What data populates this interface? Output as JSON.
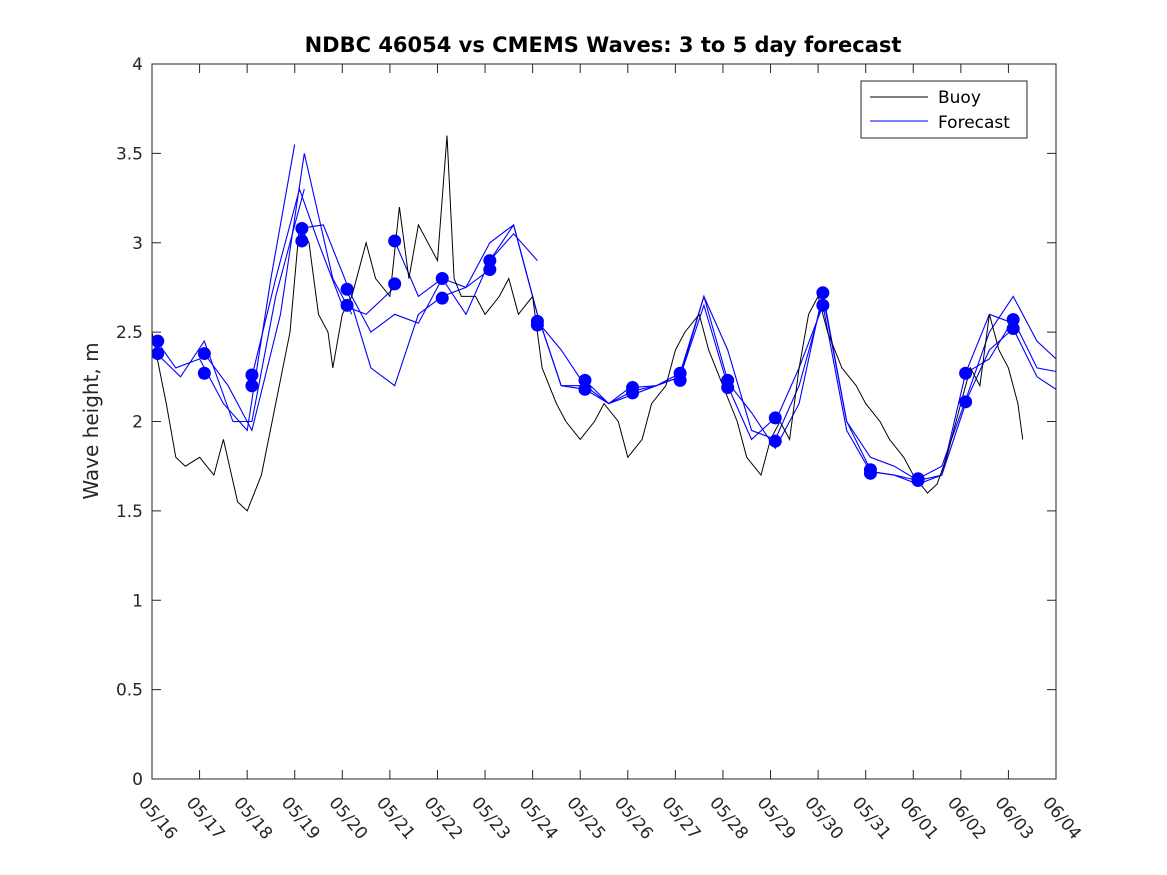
{
  "chart_data": {
    "type": "line",
    "title": "NDBC 46054 vs CMEMS Waves: 3 to 5 day forecast",
    "xlabel": "",
    "ylabel": "Wave height, m",
    "xlim": [
      0,
      19
    ],
    "ylim": [
      0,
      4
    ],
    "yticks": [
      0,
      0.5,
      1,
      1.5,
      2,
      2.5,
      3,
      3.5,
      4
    ],
    "ytick_labels": [
      "0",
      "0.5",
      "1",
      "1.5",
      "2",
      "2.5",
      "3",
      "3.5",
      "4"
    ],
    "xticks": [
      0,
      1,
      2,
      3,
      4,
      5,
      6,
      7,
      8,
      9,
      10,
      11,
      12,
      13,
      14,
      15,
      16,
      17,
      18,
      19
    ],
    "xtick_labels": [
      "05/16",
      "05/17",
      "05/18",
      "05/19",
      "05/20",
      "05/21",
      "05/22",
      "05/23",
      "05/24",
      "05/25",
      "05/26",
      "05/27",
      "05/28",
      "05/29",
      "05/30",
      "05/31",
      "06/01",
      "06/02",
      "06/03",
      "06/04"
    ],
    "grid": false,
    "legend": {
      "position": "top-right",
      "entries": [
        "Buoy",
        "Forecast"
      ]
    },
    "colors": {
      "buoy": "#000000",
      "forecast": "#0000ff",
      "markers": "#0000ff"
    },
    "x_units": "days since 05/16",
    "series": [
      {
        "name": "Buoy",
        "color": "#000000",
        "x": [
          0,
          0.15,
          0.3,
          0.5,
          0.7,
          1.0,
          1.3,
          1.5,
          1.8,
          2.0,
          2.3,
          2.6,
          2.9,
          3.1,
          3.3,
          3.5,
          3.7,
          3.8,
          4.0,
          4.2,
          4.5,
          4.7,
          5.0,
          5.2,
          5.4,
          5.6,
          5.8,
          6.0,
          6.2,
          6.35,
          6.5,
          6.8,
          7.0,
          7.3,
          7.5,
          7.7,
          8.0,
          8.2,
          8.5,
          8.7,
          9.0,
          9.3,
          9.5,
          9.8,
          10.0,
          10.3,
          10.5,
          10.8,
          11.0,
          11.2,
          11.5,
          11.7,
          12.0,
          12.3,
          12.5,
          12.8,
          13.0,
          13.2,
          13.4,
          13.6,
          13.8,
          14.0,
          14.2,
          14.5,
          14.8,
          15.0,
          15.3,
          15.5,
          15.8,
          16.0,
          16.3,
          16.5,
          16.7,
          17.0,
          17.2,
          17.4,
          17.6,
          17.8,
          18.0,
          18.2,
          18.3
        ],
        "values": [
          2.5,
          2.3,
          2.1,
          1.8,
          1.75,
          1.8,
          1.7,
          1.9,
          1.55,
          1.5,
          1.7,
          2.1,
          2.5,
          3.1,
          3.0,
          2.6,
          2.5,
          2.3,
          2.6,
          2.7,
          3.0,
          2.8,
          2.7,
          3.2,
          2.8,
          3.1,
          3.0,
          2.9,
          3.6,
          2.8,
          2.7,
          2.7,
          2.6,
          2.7,
          2.8,
          2.6,
          2.7,
          2.3,
          2.1,
          2.0,
          1.9,
          2.0,
          2.1,
          2.0,
          1.8,
          1.9,
          2.1,
          2.2,
          2.4,
          2.5,
          2.6,
          2.4,
          2.2,
          2.0,
          1.8,
          1.7,
          1.9,
          2.0,
          1.9,
          2.3,
          2.6,
          2.7,
          2.5,
          2.3,
          2.2,
          2.1,
          2.0,
          1.9,
          1.8,
          1.7,
          1.6,
          1.65,
          1.8,
          2.1,
          2.3,
          2.2,
          2.6,
          2.4,
          2.3,
          2.1,
          1.9
        ]
      },
      {
        "name": "Forecast",
        "color": "#0000ff",
        "runs": [
          {
            "x": [
              0.1,
              0.5,
              1.0,
              1.5,
              2.0,
              2.5,
              3.0
            ],
            "values": [
              2.45,
              2.3,
              2.35,
              2.1,
              1.95,
              2.8,
              3.55
            ]
          },
          {
            "x": [
              0.1,
              0.6,
              1.1,
              1.7,
              2.1,
              2.6,
              3.2
            ],
            "values": [
              2.38,
              2.25,
              2.45,
              2.0,
              2.0,
              2.7,
              3.3
            ]
          },
          {
            "x": [
              1.1,
              1.6,
              2.1,
              2.7,
              3.2,
              3.8,
              4.2
            ],
            "values": [
              2.38,
              2.2,
              1.95,
              2.6,
              3.5,
              2.8,
              2.6
            ]
          },
          {
            "x": [
              2.1,
              2.6,
              3.1,
              3.5,
              4.0,
              4.5,
              5.1
            ],
            "values": [
              2.25,
              2.8,
              3.3,
              3.0,
              2.65,
              2.6,
              2.75
            ]
          },
          {
            "x": [
              3.1,
              3.6,
              4.2,
              4.6,
              5.1,
              5.6,
              6.1
            ],
            "values": [
              3.08,
              3.1,
              2.7,
              2.5,
              2.6,
              2.55,
              2.8
            ]
          },
          {
            "x": [
              4.1,
              4.6,
              5.1,
              5.6,
              6.1,
              6.6,
              7.1
            ],
            "values": [
              2.74,
              2.3,
              2.2,
              2.6,
              2.7,
              2.75,
              2.85
            ]
          },
          {
            "x": [
              5.1,
              5.6,
              6.1,
              6.6,
              7.1,
              7.6,
              8.1
            ],
            "values": [
              3.01,
              2.7,
              2.8,
              2.6,
              2.9,
              3.05,
              2.9
            ]
          },
          {
            "x": [
              6.1,
              6.6,
              7.1,
              7.6,
              8.1,
              8.6,
              9.1
            ],
            "values": [
              2.8,
              2.75,
              3.0,
              3.1,
              2.6,
              2.2,
              2.2
            ]
          },
          {
            "x": [
              7.1,
              7.6,
              8.1,
              8.6,
              9.1,
              9.6,
              10.1
            ],
            "values": [
              2.9,
              3.1,
              2.6,
              2.2,
              2.18,
              2.1,
              2.2
            ]
          },
          {
            "x": [
              8.1,
              8.6,
              9.1,
              9.6,
              10.1,
              10.6,
              11.1
            ],
            "values": [
              2.56,
              2.4,
              2.2,
              2.1,
              2.17,
              2.2,
              2.25
            ]
          },
          {
            "x": [
              9.1,
              9.6,
              10.1,
              10.6,
              11.1,
              11.6,
              12.1
            ],
            "values": [
              2.23,
              2.1,
              2.15,
              2.2,
              2.27,
              2.7,
              2.23
            ]
          },
          {
            "x": [
              10.1,
              10.6,
              11.1,
              11.6,
              12.1,
              12.6,
              13.1
            ],
            "values": [
              2.19,
              2.2,
              2.25,
              2.65,
              2.2,
              1.9,
              2.02
            ]
          },
          {
            "x": [
              11.1,
              11.6,
              12.1,
              12.6,
              13.1,
              13.6,
              14.1
            ],
            "values": [
              2.25,
              2.7,
              2.4,
              1.95,
              1.9,
              2.2,
              2.68
            ]
          },
          {
            "x": [
              12.1,
              12.6,
              13.1,
              13.6,
              14.1,
              14.6,
              15.1
            ],
            "values": [
              2.22,
              2.05,
              1.85,
              2.1,
              2.72,
              2.0,
              1.73
            ]
          },
          {
            "x": [
              13.1,
              13.6,
              14.1,
              14.6,
              15.1,
              15.6,
              16.1
            ],
            "values": [
              2.0,
              2.3,
              2.65,
              1.95,
              1.72,
              1.7,
              1.67
            ]
          },
          {
            "x": [
              14.1,
              14.6,
              15.1,
              15.6,
              16.1,
              16.6,
              17.1
            ],
            "values": [
              2.7,
              2.0,
              1.8,
              1.75,
              1.67,
              1.7,
              2.1
            ]
          },
          {
            "x": [
              15.1,
              15.6,
              16.1,
              16.6,
              17.1,
              17.6,
              18.1
            ],
            "values": [
              1.72,
              1.7,
              1.65,
              1.7,
              2.27,
              2.6,
              2.55
            ]
          },
          {
            "x": [
              16.1,
              16.6,
              17.1,
              17.6,
              18.1,
              18.6,
              19.0
            ],
            "values": [
              1.68,
              1.75,
              2.12,
              2.5,
              2.7,
              2.45,
              2.35
            ]
          },
          {
            "x": [
              17.1,
              17.6,
              18.1,
              18.6,
              19.0
            ],
            "values": [
              2.27,
              2.35,
              2.57,
              2.3,
              2.28
            ]
          },
          {
            "x": [
              17.1,
              17.6,
              18.1,
              18.6,
              19.0
            ],
            "values": [
              2.11,
              2.4,
              2.52,
              2.25,
              2.18
            ]
          }
        ]
      },
      {
        "name": "",
        "type": "scatter",
        "color": "#0000ff",
        "x": [
          0.12,
          0.12,
          1.1,
          1.1,
          2.1,
          2.1,
          3.15,
          3.15,
          4.1,
          4.1,
          5.1,
          5.1,
          6.1,
          6.1,
          7.1,
          7.1,
          8.1,
          8.1,
          9.1,
          9.1,
          10.1,
          10.1,
          11.1,
          11.1,
          12.1,
          12.1,
          13.1,
          13.1,
          14.1,
          14.1,
          15.1,
          15.1,
          16.1,
          16.1,
          17.1,
          17.1,
          18.1,
          18.1
        ],
        "values": [
          2.45,
          2.38,
          2.38,
          2.27,
          2.26,
          2.2,
          3.08,
          3.01,
          2.74,
          2.65,
          3.01,
          2.77,
          2.8,
          2.69,
          2.9,
          2.85,
          2.56,
          2.54,
          2.23,
          2.18,
          2.19,
          2.16,
          2.27,
          2.23,
          2.23,
          2.19,
          2.02,
          1.89,
          2.72,
          2.65,
          1.73,
          1.71,
          1.68,
          1.67,
          2.27,
          2.11,
          2.57,
          2.52
        ]
      }
    ]
  }
}
